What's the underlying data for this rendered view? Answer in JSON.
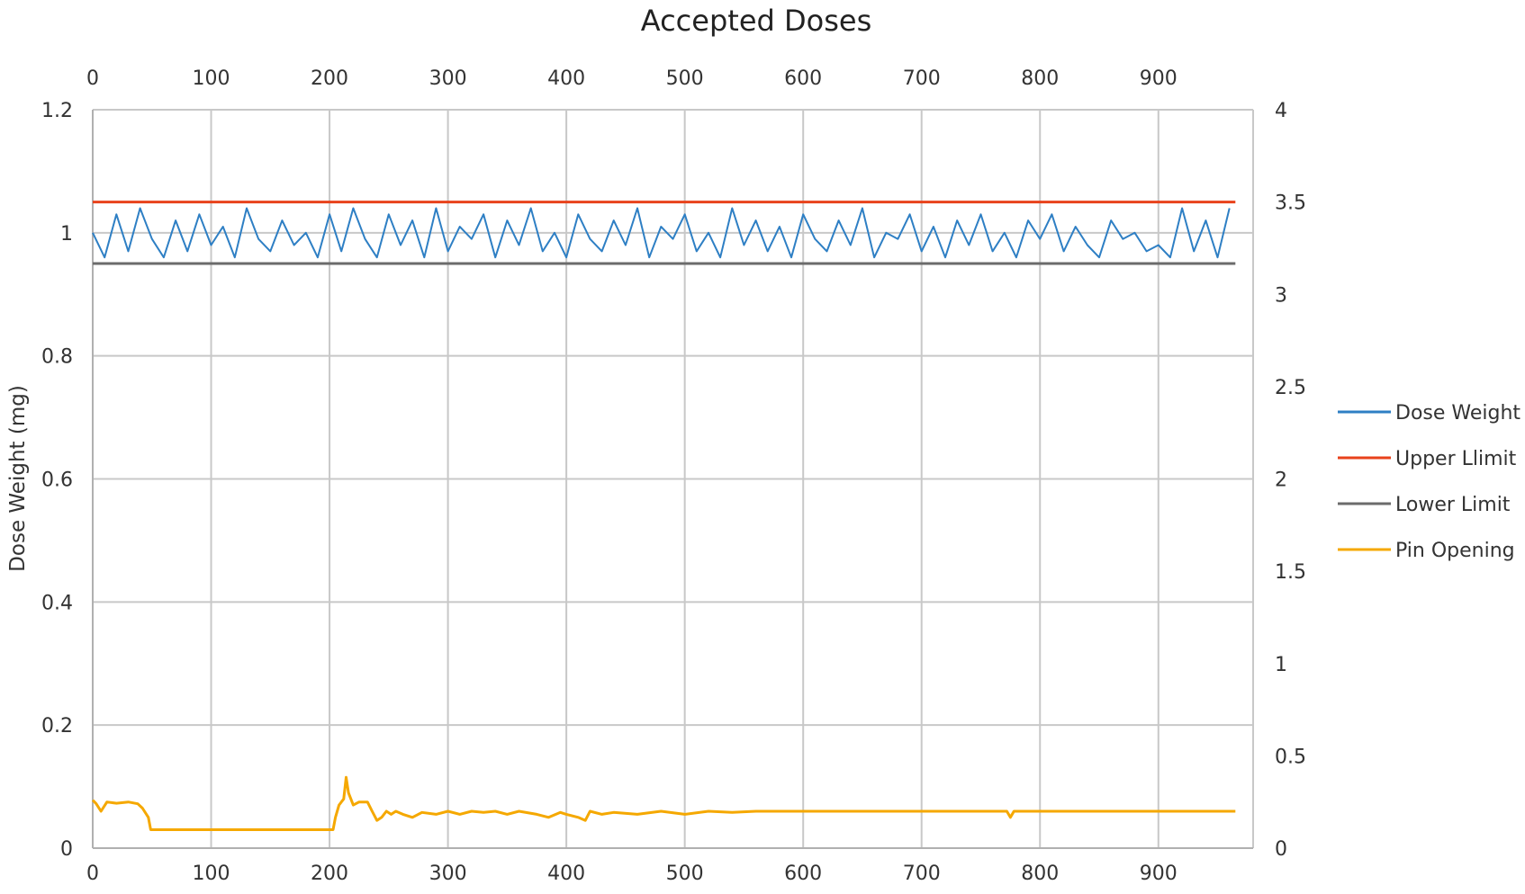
{
  "chart_data": {
    "type": "line",
    "title": "Accepted Doses",
    "xlabel": "",
    "ylabel": "Dose Weight (mg)",
    "y2label": "",
    "xlim": [
      0,
      980
    ],
    "xticks": [
      0,
      100,
      200,
      300,
      400,
      500,
      600,
      700,
      800,
      900
    ],
    "xticks_top": [
      0,
      100,
      200,
      300,
      400,
      500,
      600,
      700,
      800,
      900
    ],
    "ylim": [
      0,
      1.2
    ],
    "yticks": [
      0,
      0.2,
      0.4,
      0.6,
      0.8,
      1,
      1.2
    ],
    "y2lim": [
      0,
      4
    ],
    "y2ticks": [
      0,
      0.5,
      1,
      1.5,
      2,
      2.5,
      3,
      3.5,
      4
    ],
    "grid": true,
    "legend_position": "right",
    "series": [
      {
        "name": "Dose Weight",
        "color": "#2e7fc4",
        "axis": "left",
        "x": [
          0,
          10,
          20,
          30,
          40,
          50,
          60,
          70,
          80,
          90,
          100,
          110,
          120,
          130,
          140,
          150,
          160,
          170,
          180,
          190,
          200,
          210,
          220,
          230,
          240,
          250,
          260,
          270,
          280,
          290,
          300,
          310,
          320,
          330,
          340,
          350,
          360,
          370,
          380,
          390,
          400,
          410,
          420,
          430,
          440,
          450,
          460,
          470,
          480,
          490,
          500,
          510,
          520,
          530,
          540,
          550,
          560,
          570,
          580,
          590,
          600,
          610,
          620,
          630,
          640,
          650,
          660,
          670,
          680,
          690,
          700,
          710,
          720,
          730,
          740,
          750,
          760,
          770,
          780,
          790,
          800,
          810,
          820,
          830,
          840,
          850,
          860,
          870,
          880,
          890,
          900,
          910,
          920,
          930,
          940,
          950,
          960
        ],
        "values": [
          1.0,
          0.96,
          1.03,
          0.97,
          1.04,
          0.99,
          0.96,
          1.02,
          0.97,
          1.03,
          0.98,
          1.01,
          0.96,
          1.04,
          0.99,
          0.97,
          1.02,
          0.98,
          1.0,
          0.96,
          1.03,
          0.97,
          1.04,
          0.99,
          0.96,
          1.03,
          0.98,
          1.02,
          0.96,
          1.04,
          0.97,
          1.01,
          0.99,
          1.03,
          0.96,
          1.02,
          0.98,
          1.04,
          0.97,
          1.0,
          0.96,
          1.03,
          0.99,
          0.97,
          1.02,
          0.98,
          1.04,
          0.96,
          1.01,
          0.99,
          1.03,
          0.97,
          1.0,
          0.96,
          1.04,
          0.98,
          1.02,
          0.97,
          1.01,
          0.96,
          1.03,
          0.99,
          0.97,
          1.02,
          0.98,
          1.04,
          0.96,
          1.0,
          0.99,
          1.03,
          0.97,
          1.01,
          0.96,
          1.02,
          0.98,
          1.03,
          0.97,
          1.0,
          0.96,
          1.02,
          0.99,
          1.03,
          0.97,
          1.01,
          0.98,
          0.96,
          1.02,
          0.99,
          1.0,
          0.97,
          0.98,
          0.96,
          1.04,
          0.97,
          1.02,
          0.96,
          1.04
        ]
      },
      {
        "name": "Upper Llimit",
        "color": "#e8421b",
        "axis": "left",
        "x": [
          0,
          965
        ],
        "values": [
          1.05,
          1.05
        ]
      },
      {
        "name": "Lower Limit",
        "color": "#6b6b6b",
        "axis": "left",
        "x": [
          0,
          965
        ],
        "values": [
          0.95,
          0.95
        ]
      },
      {
        "name": "Pin Opening",
        "color": "#f5a800",
        "axis": "left",
        "x": [
          0,
          3,
          7,
          12,
          20,
          30,
          38,
          42,
          47,
          49,
          100,
          150,
          200,
          203,
          205,
          208,
          212,
          214,
          216,
          220,
          225,
          232,
          236,
          240,
          244,
          248,
          252,
          256,
          262,
          270,
          278,
          290,
          300,
          310,
          320,
          330,
          340,
          350,
          360,
          375,
          385,
          395,
          400,
          410,
          416,
          420,
          430,
          440,
          460,
          480,
          500,
          520,
          540,
          560,
          600,
          640,
          676,
          700,
          760,
          772,
          775,
          778,
          800,
          850,
          900,
          965
        ],
        "values": [
          0.078,
          0.072,
          0.06,
          0.075,
          0.073,
          0.075,
          0.072,
          0.065,
          0.05,
          0.03,
          0.03,
          0.03,
          0.03,
          0.03,
          0.05,
          0.07,
          0.08,
          0.115,
          0.09,
          0.07,
          0.075,
          0.075,
          0.06,
          0.045,
          0.05,
          0.06,
          0.055,
          0.06,
          0.055,
          0.05,
          0.058,
          0.055,
          0.06,
          0.055,
          0.06,
          0.058,
          0.06,
          0.055,
          0.06,
          0.055,
          0.05,
          0.058,
          0.055,
          0.05,
          0.045,
          0.06,
          0.055,
          0.058,
          0.055,
          0.06,
          0.055,
          0.06,
          0.058,
          0.06,
          0.06,
          0.06,
          0.06,
          0.06,
          0.06,
          0.06,
          0.05,
          0.06,
          0.06,
          0.06,
          0.06,
          0.06
        ]
      }
    ]
  }
}
